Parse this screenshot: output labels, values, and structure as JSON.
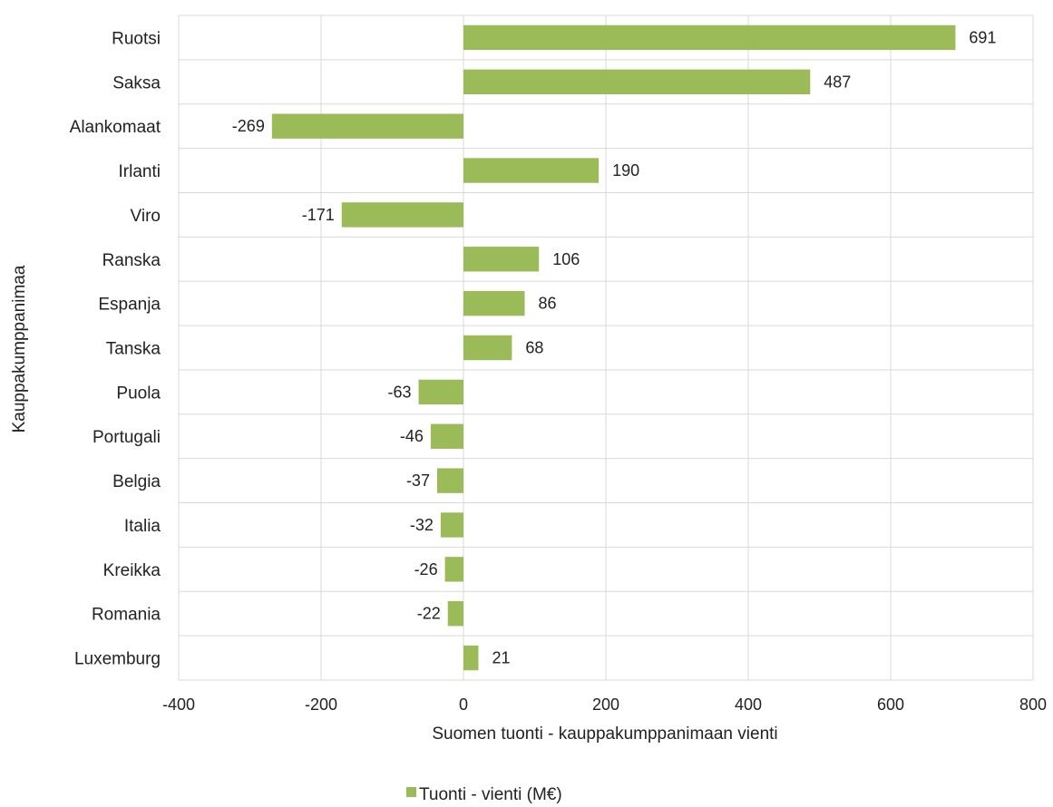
{
  "chart_data": {
    "type": "bar",
    "orientation": "horizontal",
    "categories": [
      "Ruotsi",
      "Saksa",
      "Alankomaat",
      "Irlanti",
      "Viro",
      "Ranska",
      "Espanja",
      "Tanska",
      "Puola",
      "Portugali",
      "Belgia",
      "Italia",
      "Kreikka",
      "Romania",
      "Luxemburg"
    ],
    "series": [
      {
        "name": "Tuonti - vienti (M€)",
        "values": [
          691,
          487,
          -269,
          190,
          -171,
          106,
          86,
          68,
          -63,
          -46,
          -37,
          -32,
          -26,
          -22,
          21
        ],
        "color": "#9bbb59"
      }
    ],
    "data_labels": [
      "691",
      "487",
      "-269",
      "190",
      "-171",
      "106",
      "86",
      "68",
      "-63",
      "-46",
      "-37",
      "-32",
      "-26",
      "-22",
      "21"
    ],
    "xlabel": "Suomen tuonti - kauppakumppanimaan vienti",
    "ylabel": "Kauppakumppanimaa",
    "xlim": [
      -400,
      800
    ],
    "xticks": [
      -400,
      -200,
      0,
      200,
      400,
      600,
      800
    ],
    "xtick_labels": [
      "-400",
      "-200",
      "0",
      "200",
      "400",
      "600",
      "800"
    ],
    "grid": true,
    "legend_position": "bottom",
    "bar_color": "#9bbb59",
    "grid_color": "#d9d9d9"
  }
}
